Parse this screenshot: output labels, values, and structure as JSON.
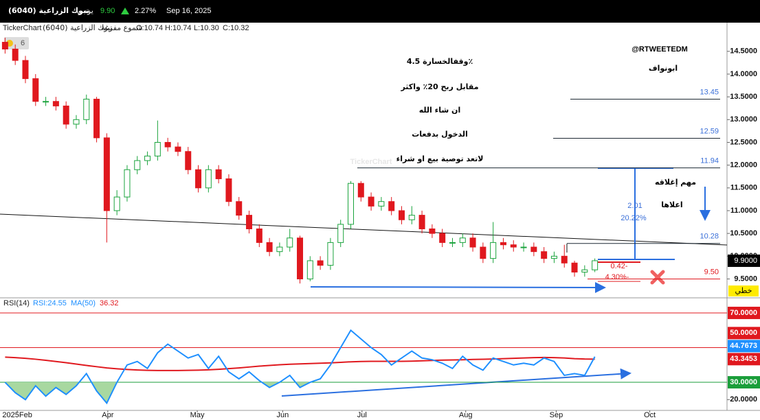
{
  "header": {
    "symbol": "تبوك الزراعية (6040)",
    "interval": "يومي",
    "price": "9.90",
    "change": "2.27%",
    "date": "Sep 16, 2025"
  },
  "info": {
    "brand": "TickerChart",
    "symbol": "تبوك الزراعية (6040)",
    "style": "شموع مفرغة",
    "open": "O:10.74",
    "high": "H:10.74",
    "low": "L:10.30",
    "close": "C:10.32"
  },
  "badge": "6",
  "watermark": "TickerChart",
  "chart_data": [
    {
      "type": "candlestick",
      "open": [
        14.7,
        14.55,
        14.3,
        13.9,
        13.4,
        13.4,
        13.3,
        12.9,
        13.0,
        13.45,
        12.6,
        11.0,
        11.3,
        11.9,
        12.1,
        12.2,
        12.5,
        12.4,
        12.3,
        11.9,
        11.5,
        11.9,
        11.7,
        11.2,
        10.9,
        10.6,
        10.3,
        10.1,
        10.2,
        10.4,
        9.5,
        9.9,
        9.8,
        10.3,
        10.7,
        11.6,
        11.3,
        11.1,
        11.2,
        11.0,
        10.8,
        10.9,
        10.6,
        10.5,
        10.3,
        10.3,
        10.4,
        10.2,
        9.95,
        10.3,
        10.25,
        10.2,
        10.2,
        10.1,
        9.95,
        10.0,
        9.85,
        9.65,
        9.7
      ],
      "high": [
        14.8,
        14.65,
        14.4,
        14.0,
        13.5,
        13.5,
        13.4,
        13.1,
        13.55,
        13.5,
        12.7,
        11.45,
        12.0,
        12.2,
        12.3,
        12.98,
        12.6,
        12.5,
        12.4,
        12.0,
        12.0,
        12.0,
        11.8,
        11.3,
        11.0,
        10.7,
        10.4,
        10.3,
        10.6,
        10.45,
        10.0,
        10.0,
        10.4,
        10.8,
        11.65,
        11.65,
        11.4,
        11.3,
        11.3,
        11.1,
        11.1,
        11.0,
        10.7,
        10.6,
        10.4,
        10.5,
        10.5,
        10.3,
        10.75,
        10.4,
        10.35,
        10.3,
        10.3,
        10.2,
        10.1,
        10.25,
        9.9,
        9.8,
        9.95
      ],
      "low": [
        14.45,
        14.2,
        13.8,
        13.3,
        13.3,
        13.2,
        12.8,
        12.8,
        12.9,
        12.5,
        10.3,
        10.9,
        11.2,
        11.8,
        12.0,
        12.1,
        12.3,
        12.2,
        11.8,
        11.4,
        11.4,
        11.6,
        11.1,
        10.8,
        10.5,
        10.2,
        10.0,
        10.0,
        10.1,
        9.4,
        9.45,
        9.7,
        9.7,
        10.2,
        10.6,
        11.2,
        11.0,
        11.0,
        10.9,
        10.7,
        10.7,
        10.5,
        10.4,
        10.2,
        10.2,
        10.2,
        10.1,
        9.85,
        9.85,
        10.15,
        10.1,
        10.1,
        10.0,
        9.85,
        9.85,
        9.75,
        9.55,
        9.55,
        9.65
      ],
      "close": [
        14.55,
        14.3,
        13.9,
        13.4,
        13.4,
        13.3,
        12.9,
        13.0,
        13.45,
        12.6,
        11.0,
        11.3,
        11.9,
        12.1,
        12.2,
        12.5,
        12.4,
        12.3,
        11.9,
        11.5,
        11.9,
        11.7,
        11.2,
        10.9,
        10.6,
        10.3,
        10.1,
        10.2,
        10.4,
        9.5,
        9.9,
        9.8,
        10.3,
        10.7,
        11.6,
        11.3,
        11.1,
        11.2,
        11.0,
        10.8,
        10.9,
        10.6,
        10.5,
        10.3,
        10.3,
        10.4,
        10.2,
        9.95,
        10.3,
        10.25,
        10.2,
        10.2,
        10.1,
        9.95,
        10.0,
        9.85,
        9.65,
        9.7,
        9.9
      ],
      "up_color": "#1aa33c",
      "down_color": "#e0181e",
      "xlim": [
        -0.5,
        71
      ],
      "ylim": [
        9.1,
        15.1
      ],
      "yticks": [
        {
          "value": 14.5,
          "label": "14.5000"
        },
        {
          "value": 14.0,
          "label": "14.0000"
        },
        {
          "value": 13.5,
          "label": "13.5000"
        },
        {
          "value": 13.0,
          "label": "13.0000"
        },
        {
          "value": 12.5,
          "label": "12.5000"
        },
        {
          "value": 12.0,
          "label": "12.0000"
        },
        {
          "value": 11.5,
          "label": "11.5000"
        },
        {
          "value": 11.0,
          "label": "11.0000"
        },
        {
          "value": 10.5,
          "label": "10.5000"
        },
        {
          "value": 10.0,
          "label": "10.0000"
        },
        {
          "value": 9.5,
          "label": "9.5000"
        }
      ],
      "price_tag": {
        "value": 9.9,
        "label": "9.9000"
      },
      "levels": [
        13.45,
        12.59,
        11.94,
        10.28,
        {
          "value": 9.5,
          "label": "9.50"
        }
      ],
      "level_colors": [
        "#1c2833",
        "#1c2833",
        "#1c2833",
        "#1c2833",
        "#e0181e"
      ],
      "level_label_colors": [
        "#3a6fd8",
        "#3a6fd8",
        "#3a6fd8",
        "#3a6fd8",
        "#e0181e"
      ],
      "scale_mode": "خطي",
      "annotations": {
        "handle": "@RTWEETEDM",
        "author": "ابونواف",
        "stop": "وقفالخسارة 4.5٪",
        "target": "مقابل ربح 20٪ واكثر",
        "wish": "ان شاء الله",
        "entry": "الدخول بدفعات",
        "disclaimer": "لاتعد توصية بيع او شراء",
        "close_note": "مهم إغلاقه",
        "above": "اعلاها",
        "gain_abs": "2.01",
        "gain_pct": "20.22%",
        "loss_abs": "0.42-",
        "loss_pct": "4.30%-"
      }
    },
    {
      "type": "line",
      "title": "RSI(14)",
      "series": [
        {
          "name": "RSI:24.55",
          "color": "#1e8fff",
          "values": [
            30,
            24,
            20,
            28,
            22,
            27,
            23,
            28,
            35,
            25,
            18,
            30,
            40,
            42,
            38,
            47,
            52,
            48,
            44,
            46,
            38,
            45,
            36,
            32,
            36,
            31,
            27,
            30,
            34,
            27,
            30,
            32,
            40,
            50,
            60,
            55,
            50,
            46,
            40,
            44,
            48,
            44,
            43,
            41,
            38,
            45,
            40,
            37,
            44,
            42,
            40,
            41,
            40,
            44,
            42,
            34,
            35,
            34,
            44.7673
          ]
        },
        {
          "name": "MA(50)",
          "color": "#e0181e",
          "values": [
            44.5,
            44.2,
            43.8,
            43.3,
            42.7,
            42.0,
            41.3,
            40.5,
            39.7,
            39.0,
            38.3,
            37.8,
            37.4,
            37.1,
            36.9,
            36.8,
            36.8,
            36.8,
            36.9,
            37.0,
            37.2,
            37.5,
            37.9,
            38.3,
            38.8,
            39.3,
            39.7,
            40.1,
            40.4,
            40.6,
            40.8,
            41.0,
            41.2,
            41.5,
            41.8,
            42.0,
            42.1,
            42.1,
            42.1,
            42.1,
            42.2,
            42.4,
            42.6,
            42.8,
            42.9,
            43.0,
            43.2,
            43.3,
            43.4,
            43.6,
            43.8,
            44.0,
            44.2,
            44.3,
            44.2,
            44.0,
            43.6,
            43.4,
            43.3453
          ]
        }
      ],
      "ma_value_label": "36.32",
      "xlim": [
        -0.5,
        71
      ],
      "ylim": [
        13.8,
        77.5
      ],
      "yticks": [
        {
          "value": 70,
          "label": "70.0000"
        },
        {
          "value": 50,
          "label": "50.0000"
        },
        {
          "value": 30,
          "label": "30.0000"
        },
        {
          "value": 20,
          "label": "20.0000"
        }
      ],
      "ytick_colors": [
        "#e0181e",
        "#e0181e",
        "#1a9e3a",
        "none"
      ],
      "oversold_color": "#a8d8a0",
      "xticks": [
        {
          "value": 1.2,
          "label": "2025Feb"
        },
        {
          "value": 10.1,
          "label": "Apr"
        },
        {
          "value": 18.9,
          "label": "May"
        },
        {
          "value": 27.3,
          "label": "Jun"
        },
        {
          "value": 35.1,
          "label": "Jul"
        },
        {
          "value": 45.3,
          "label": "Aug"
        },
        {
          "value": 54.2,
          "label": "Sep"
        },
        {
          "value": 63.4,
          "label": "Oct"
        }
      ]
    }
  ]
}
